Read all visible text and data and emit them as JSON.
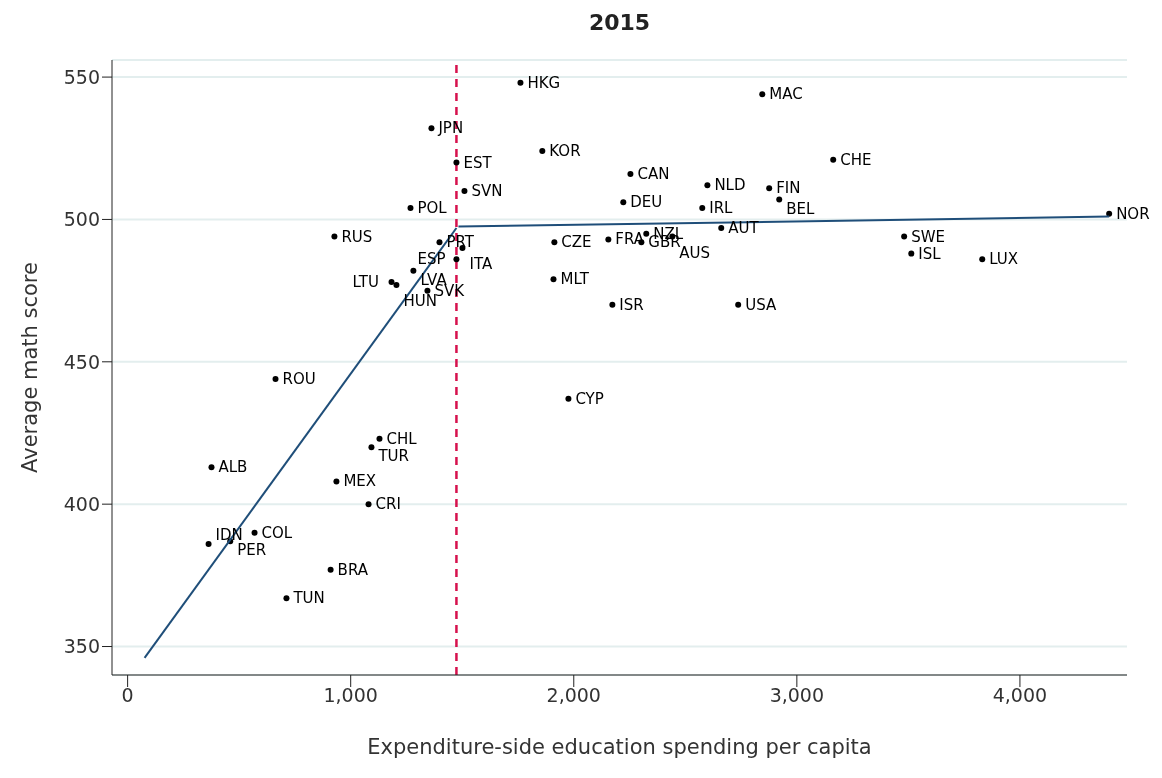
{
  "chart_data": {
    "type": "scatter",
    "title": "2015",
    "xlabel": "Expenditure-side education spending per capita",
    "ylabel": "Average math score",
    "xlim": [
      -70,
      4480
    ],
    "ylim": [
      340,
      556
    ],
    "xticks": [
      0,
      {
        "value": 1000,
        "label": "1,000"
      },
      {
        "value": 2000,
        "label": "2,000"
      },
      {
        "value": 3000,
        "label": "3,000"
      },
      {
        "value": 4000,
        "label": "4,000"
      }
    ],
    "yticks": [
      350,
      400,
      450,
      500,
      550
    ],
    "grid": "y",
    "legend": false,
    "marker": "circle",
    "series": [
      {
        "color": "#000000",
        "x": [
          1761,
          2845,
          1362,
          1859,
          1474,
          3163,
          2254,
          2599,
          2876,
          1510,
          2921,
          2222,
          2576,
          1268,
          4400,
          2661,
          927,
          3481,
          2325,
          2442,
          2155,
          2303,
          1913,
          1398,
          1501,
          1474,
          3513,
          3831,
          1281,
          1909,
          1183,
          1205,
          1344,
          2173,
          2737,
          663,
          1976,
          1129,
          1093,
          376,
          936,
          1080,
          569,
          460,
          363,
          910,
          712
        ],
        "values": [
          548,
          544,
          532,
          524,
          520,
          521,
          516,
          512,
          511,
          510,
          507,
          506,
          504,
          504,
          502,
          497,
          494,
          494,
          495,
          494,
          493,
          492,
          492,
          492,
          490,
          486,
          488,
          486,
          482,
          479,
          478,
          477,
          475,
          470,
          470,
          444,
          437,
          423,
          420,
          413,
          408,
          400,
          390,
          387,
          386,
          377,
          367
        ],
        "value_labels": [
          "HKG",
          "MAC",
          "JPN",
          "KOR",
          "EST",
          "CHE",
          "CAN",
          "NLD",
          "FIN",
          "SVN",
          "BEL",
          "DEU",
          "IRL",
          "POL",
          "NOR",
          "AUT",
          "RUS",
          "SWE",
          "NZL",
          "AUS",
          "FRA",
          "GBR",
          "CZE",
          "PRT",
          "ITA",
          "ESP",
          "ISL",
          "LUX",
          "LVA",
          "MLT",
          "LTU",
          "HUN",
          "SVK",
          "ISR",
          "USA",
          "ROU",
          "CYP",
          "CHL",
          "TUR",
          "ALB",
          "MEX",
          "CRI",
          "COL",
          "PER",
          "IDN",
          "BRA",
          "TUN"
        ]
      },
      {
        "type": "line",
        "color": "#1f4e79",
        "marker": "none",
        "x": [
          76,
          1474
        ],
        "values": [
          346,
          497
        ]
      },
      {
        "type": "line",
        "color": "#1f4e79",
        "marker": "none",
        "x": [
          1483,
          4400
        ],
        "values": [
          497.5,
          501
        ]
      }
    ],
    "ref_lines": [
      {
        "axis": "x",
        "value": 1474,
        "color": "#d6114d",
        "line_style": "dashed"
      }
    ]
  }
}
